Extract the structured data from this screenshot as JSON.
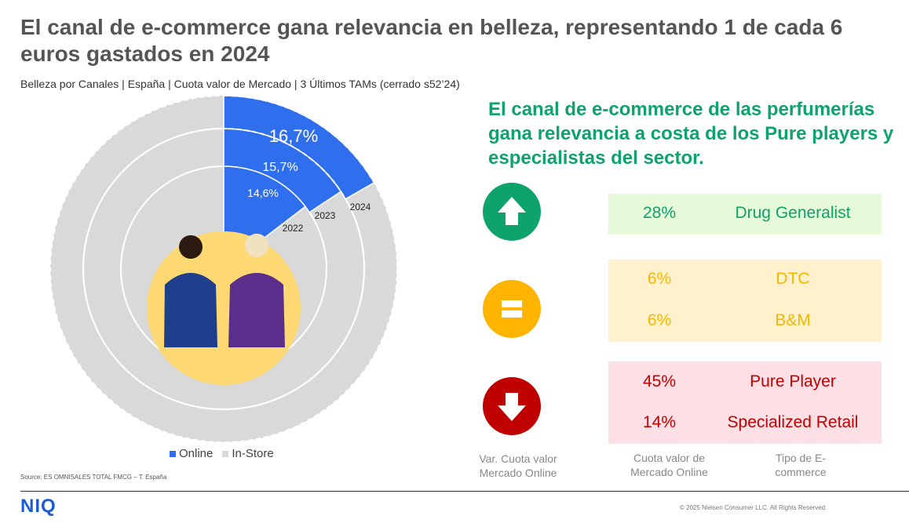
{
  "title": "El canal de e-commerce gana relevancia en belleza, representando 1 de cada 6 euros gastados  en 2024",
  "subtitle": "Belleza por Canales | España | Cuota valor de Mercado | 3 Últimos TAMs (cerrado s52’24)",
  "chart_data": {
    "type": "radial-bar",
    "title": "",
    "series": [
      {
        "name": "Online",
        "color": "#2f6fee"
      },
      {
        "name": "In-Store",
        "color": "#d9d9d9"
      }
    ],
    "periods": [
      "2022",
      "2023",
      "2024"
    ],
    "online_share_pct": [
      14.6,
      15.7,
      16.7
    ],
    "value_labels": [
      "14,6%",
      "15,7%",
      "16,7%"
    ]
  },
  "legend": {
    "online": "Online",
    "instore": "In-Store"
  },
  "source": "Source: ES OMNISALES TOTAL FMCG – T. España",
  "headline": "El canal de e-commerce de las perfumerías gana relevancia a costa de los Pure players y especialistas del sector.",
  "indicators": {
    "up": {
      "icon": "arrow-up-icon",
      "color": "#0ea36a"
    },
    "equal": {
      "icon": "equals-icon",
      "color": "#ffb400"
    },
    "down": {
      "icon": "arrow-down-icon",
      "color": "#c00000"
    }
  },
  "groups": [
    {
      "rows": [
        {
          "share": "28%",
          "type": "Drug Generalist"
        }
      ],
      "color": "#0ea36a",
      "bg": "#e6f9d9"
    },
    {
      "rows": [
        {
          "share": "6%",
          "type": "DTC"
        },
        {
          "share": "6%",
          "type": "B&M"
        }
      ],
      "color": "#f5b800",
      "bg": "#fff1cc"
    },
    {
      "rows": [
        {
          "share": "45%",
          "type": "Pure Player"
        },
        {
          "share": "14%",
          "type": "Specialized Retail"
        }
      ],
      "color": "#c00000",
      "bg": "#fde0e6"
    }
  ],
  "captions": {
    "var": "Var. Cuota valor Mercado Online",
    "cuota": "Cuota valor de Mercado Online",
    "tipo": "Tipo de E-commerce"
  },
  "logo": "NIQ",
  "copyright": "© 2025 Nielsen Consumer LLC. All Rights Reserved."
}
